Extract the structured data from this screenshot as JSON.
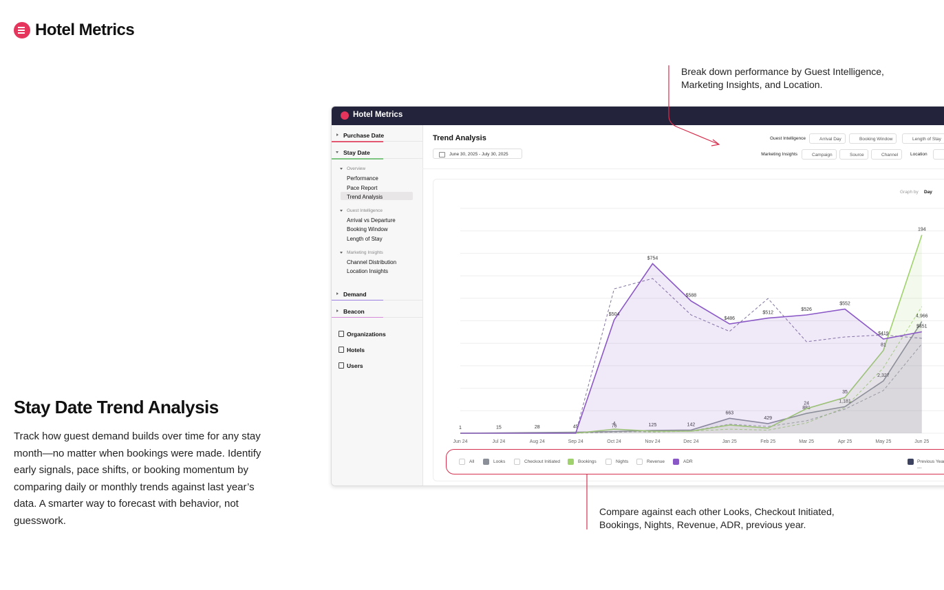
{
  "header": {
    "brand": "Hotel Metrics"
  },
  "callouts": {
    "top": "Break down performance by Guest Intelligence, Marketing Insights, and Location.",
    "bottom": "Compare against each other Looks, Checkout Initiated, Bookings, Nights, Revenue, ADR, previous year."
  },
  "intro": {
    "title": "Stay Date Trend Analysis",
    "body": "Track how guest demand builds over time for any stay month—no matter when bookings were made. Identify early signals, pace shifts, or booking momentum by comparing daily or monthly trends against last year’s data. A smarter way to forecast with behavior, not guesswork."
  },
  "app": {
    "brand": "Hotel Metrics",
    "sidebar": {
      "sections": [
        {
          "label": "Purchase Date"
        },
        {
          "label": "Stay Date",
          "groups": [
            {
              "label": "Overview",
              "items": [
                "Performance",
                "Pace Report",
                "Trend Analysis"
              ]
            },
            {
              "label": "Guest Intelligence",
              "items": [
                "Arrival vs Departure",
                "Booking Window",
                "Length of Stay"
              ]
            },
            {
              "label": "Marketing Insights",
              "items": [
                "Channel Distribution",
                "Location Insights"
              ]
            }
          ]
        },
        {
          "label": "Demand"
        },
        {
          "label": "Beacon"
        }
      ],
      "links": [
        "Organizations",
        "Hotels",
        "Users"
      ]
    },
    "page_title": "Trend Analysis",
    "date_range": "June 30, 2025 - July 30, 2025",
    "filters": {
      "guest_intelligence": {
        "label": "Guest Intelligence",
        "buttons": [
          "Arrival Day",
          "Booking Window",
          "Length of Stay"
        ]
      },
      "marketing_insights": {
        "label": "Marketing Insights",
        "buttons": [
          "Campaign",
          "Source",
          "Channel"
        ]
      },
      "location": {
        "label": "Location"
      }
    },
    "graph_by": {
      "label": "Graph by",
      "value": "Day"
    }
  },
  "chart_data": {
    "type": "line",
    "categories": [
      "Jun 24",
      "Jul 24",
      "Aug 24",
      "Sep 24",
      "Oct 24",
      "Nov 24",
      "Dec 24",
      "Jan 25",
      "Feb 25",
      "Mar 25",
      "Apr 25",
      "May 25",
      "Jun 25"
    ],
    "series": [
      {
        "name": "Looks",
        "color": "#8a8f98",
        "area": true,
        "ylim": [
          0,
          10000
        ],
        "values": [
          1,
          15,
          28,
          45,
          76,
          125,
          142,
          663,
          429,
          881,
          1181,
          2327,
          4966
        ],
        "value_labels": [
          "1",
          "15",
          "28",
          "45",
          "76",
          "125",
          "142",
          "663",
          "429",
          "881",
          "1,181",
          "2,327",
          "4,966"
        ]
      },
      {
        "name": "Bookings",
        "color": "#9fd16c",
        "area": true,
        "ylim": [
          0,
          220
        ],
        "values": [
          0,
          0,
          0,
          0,
          4,
          2,
          2,
          8,
          5,
          24,
          35,
          81,
          194
        ],
        "value_labels": [
          null,
          null,
          null,
          null,
          "4",
          null,
          null,
          null,
          null,
          "24",
          "35",
          "81",
          "194"
        ]
      },
      {
        "name": "ADR",
        "color": "#8a58c6",
        "area": true,
        "ylim": [
          0,
          1000
        ],
        "values": [
          0,
          0,
          0,
          0,
          504,
          754,
          588,
          486,
          512,
          526,
          552,
          419,
          451
        ],
        "value_labels": [
          null,
          null,
          null,
          null,
          "$504",
          "$754",
          "$588",
          "$486",
          "$512",
          "$526",
          "$552",
          "$419",
          "$451"
        ]
      },
      {
        "color": "#8a8f98",
        "dashed": true,
        "ylim": [
          0,
          10000
        ],
        "values": [
          0,
          0,
          0,
          0,
          50,
          80,
          100,
          400,
          300,
          550,
          1070,
          1900,
          3975
        ]
      },
      {
        "color": "#9fd16c",
        "dashed": true,
        "ylim": [
          0,
          220
        ],
        "values": [
          0,
          0,
          0,
          0,
          2,
          1,
          2,
          4,
          3,
          10,
          25,
          64,
          124
        ]
      },
      {
        "color": "#6c5a8e",
        "dashed": true,
        "ylim": [
          0,
          1000
        ],
        "values": [
          0,
          0,
          0,
          0,
          642,
          688,
          526,
          453,
          599,
          407,
          428,
          437,
          422
        ]
      }
    ],
    "inactive_toggles": [
      "All",
      "Checkout Initiated",
      "Nights",
      "Revenue"
    ],
    "comparison": {
      "label": "Previous Year",
      "marker": "---"
    }
  }
}
